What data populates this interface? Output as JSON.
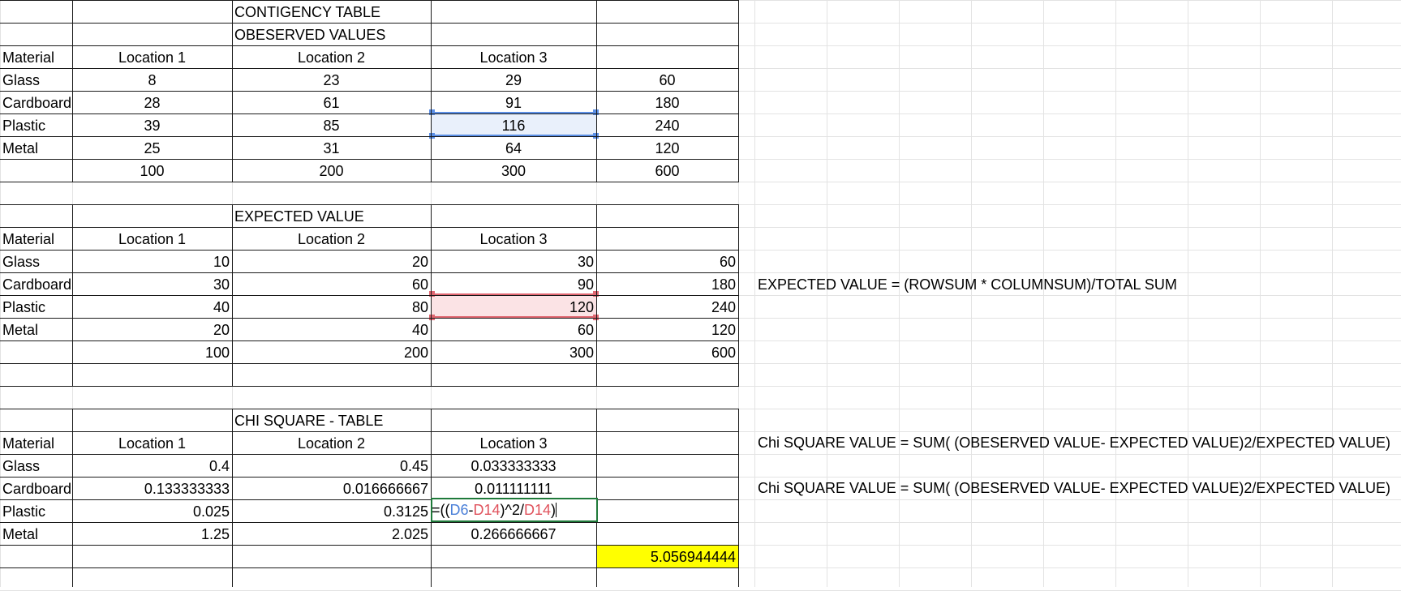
{
  "sheet": {
    "contingency": {
      "title": "CONTIGENCY TABLE",
      "subtitle": "OBESERVED VALUES",
      "header": [
        "Material",
        "Location 1",
        "Location 2",
        "Location 3",
        ""
      ],
      "rows": [
        [
          "Glass",
          "8",
          "23",
          "29",
          "60"
        ],
        [
          "Cardboard",
          "28",
          "61",
          "91",
          "180"
        ],
        [
          "Plastic",
          "39",
          "85",
          "116",
          "240"
        ],
        [
          "Metal",
          "25",
          "31",
          "64",
          "120"
        ],
        [
          "",
          "100",
          "200",
          "300",
          "600"
        ]
      ]
    },
    "expected": {
      "title": "EXPECTED VALUE",
      "header": [
        "Material",
        "Location 1",
        "Location 2",
        "Location 3",
        ""
      ],
      "rows": [
        [
          "Glass",
          "10",
          "20",
          "30",
          "60"
        ],
        [
          "Cardboard",
          "30",
          "60",
          "90",
          "180"
        ],
        [
          "Plastic",
          "40",
          "80",
          "120",
          "240"
        ],
        [
          "Metal",
          "20",
          "40",
          "60",
          "120"
        ],
        [
          "",
          "100",
          "200",
          "300",
          "600"
        ]
      ],
      "note": "EXPECTED VALUE = (ROWSUM * COLUMNSUM)/TOTAL SUM"
    },
    "chi": {
      "title": "CHI SQUARE - TABLE",
      "header": [
        "Material",
        "Location 1",
        "Location 2",
        "Location 3",
        ""
      ],
      "rows": [
        [
          "Glass",
          "0.4",
          "0.45",
          "0.033333333",
          ""
        ],
        [
          "Cardboard",
          "0.133333333",
          "0.016666667",
          "0.011111111",
          ""
        ],
        [
          "Plastic",
          "0.025",
          "0.3125",
          "",
          ""
        ],
        [
          "Metal",
          "1.25",
          "2.025",
          "0.266666667",
          ""
        ]
      ],
      "total": "5.056944444",
      "note1": "Chi SQUARE VALUE = SUM( (OBESERVED VALUE- EXPECTED VALUE)2/EXPECTED VALUE)",
      "note2": "Chi SQUARE VALUE = SUM( (OBESERVED VALUE- EXPECTED VALUE)2/EXPECTED VALUE)",
      "formula": {
        "p1": "=((",
        "ref1": "D6",
        "p2": "-",
        "ref2": "D14",
        "p3": ")^2/",
        "ref3": "D14",
        "p4": ")"
      }
    },
    "colors": {
      "grid": "#e3e3e3",
      "border": "#1a1a1a",
      "ref_blue": "#4a7fd8",
      "ref_red": "#e0525c",
      "edit_border": "#1f7a3a",
      "total_fill": "#ffff00"
    }
  }
}
